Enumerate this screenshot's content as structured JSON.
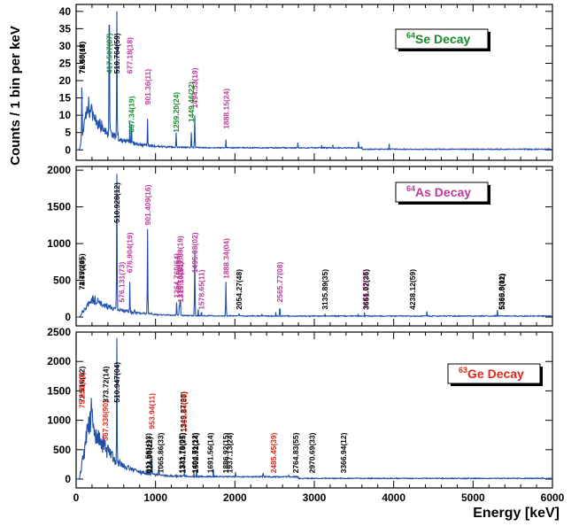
{
  "figure": {
    "ylabel": "Counts / 1 bin per keV",
    "xlabel": "Energy [keV]"
  },
  "chart_data": [
    {
      "type": "line",
      "title_prefix": "64",
      "title_suffix": "Se Decay",
      "title_color": "#1a8a2e",
      "line_color": "#1f4fa8",
      "xlim": [
        0,
        6000
      ],
      "ylim": [
        -3,
        42
      ],
      "yticks": [
        0,
        5,
        10,
        15,
        20,
        25,
        30,
        35,
        40
      ],
      "bg_level": 12,
      "bg_peak_x": 150,
      "bg_decay_keV": 260,
      "bg_floor": 0.6,
      "tail_keV": 3600,
      "peaks": [
        {
          "x": 72.5,
          "y": 18
        },
        {
          "x": 75.5,
          "y": 12
        },
        {
          "x": 417.5,
          "y": 36
        },
        {
          "x": 510.8,
          "y": 40
        },
        {
          "x": 677.2,
          "y": 8
        },
        {
          "x": 697.3,
          "y": 7
        },
        {
          "x": 901.4,
          "y": 9
        },
        {
          "x": 1259.2,
          "y": 5
        },
        {
          "x": 1449.5,
          "y": 5
        },
        {
          "x": 1494.5,
          "y": 10
        },
        {
          "x": 1888.2,
          "y": 3
        }
      ],
      "labels": [
        {
          "x": 72.48,
          "y": 22,
          "text": "72.48(43)",
          "color": "#000000"
        },
        {
          "x": 75.5,
          "y": 22,
          "text": "75.50(18)",
          "color": "#000000"
        },
        {
          "x": 417.51,
          "y": 22,
          "text": "417.507(87)",
          "color": "#1a8a2e"
        },
        {
          "x": 510.76,
          "y": 22,
          "text": "510.764(59)",
          "color": "#000000"
        },
        {
          "x": 677.18,
          "y": 22,
          "text": "677.18(18)",
          "color": "#c0399a"
        },
        {
          "x": 697.34,
          "y": 5,
          "text": "697.34(19)",
          "color": "#1a8a2e"
        },
        {
          "x": 901.36,
          "y": 13,
          "text": "901.36(11)",
          "color": "#c0399a"
        },
        {
          "x": 1259.2,
          "y": 5,
          "text": "1259.20(24)",
          "color": "#1a8a2e"
        },
        {
          "x": 1449.46,
          "y": 8,
          "text": "1449.46(22)",
          "color": "#1a8a2e"
        },
        {
          "x": 1494.53,
          "y": 12,
          "text": "1494.53(19)",
          "color": "#c0399a"
        },
        {
          "x": 1888.15,
          "y": 6,
          "text": "1888.15(24)",
          "color": "#c0399a"
        }
      ]
    },
    {
      "type": "line",
      "title_prefix": "64",
      "title_suffix": "As Decay",
      "title_color": "#c0399a",
      "line_color": "#1f4fa8",
      "xlim": [
        0,
        6000
      ],
      "ylim": [
        -120,
        2050
      ],
      "yticks": [
        0,
        500,
        1000,
        1500,
        2000
      ],
      "bg_level": 240,
      "bg_peak_x": 200,
      "bg_decay_keV": 330,
      "bg_floor": 14,
      "tail_keV": 6000,
      "peaks": [
        {
          "x": 75,
          "y": 80
        },
        {
          "x": 510.9,
          "y": 1950
        },
        {
          "x": 576.1,
          "y": 60
        },
        {
          "x": 676.9,
          "y": 480
        },
        {
          "x": 901.4,
          "y": 1200
        },
        {
          "x": 1264.8,
          "y": 200
        },
        {
          "x": 1300.2,
          "y": 150
        },
        {
          "x": 1311.98,
          "y": 220
        },
        {
          "x": 1315.1,
          "y": 100
        },
        {
          "x": 1495.1,
          "y": 900
        },
        {
          "x": 1578.7,
          "y": 60
        },
        {
          "x": 1888.3,
          "y": 480
        },
        {
          "x": 2054.3,
          "y": 40
        },
        {
          "x": 2565.8,
          "y": 110
        },
        {
          "x": 3135.9,
          "y": 20
        },
        {
          "x": 3646.8,
          "y": 20
        },
        {
          "x": 3651.0,
          "y": 15
        },
        {
          "x": 4238.1,
          "y": 12
        },
        {
          "x": 5360.8,
          "y": 10
        },
        {
          "x": 5365.0,
          "y": 8
        }
      ],
      "labels": [
        {
          "x": 72.47,
          "y": 370,
          "text": "72.47(24)",
          "color": "#000000"
        },
        {
          "x": 74.79,
          "y": 370,
          "text": "74.790(95)",
          "color": "#000000"
        },
        {
          "x": 510.928,
          "y": 1280,
          "text": "510.928(12)",
          "color": "#000000"
        },
        {
          "x": 576.131,
          "y": 200,
          "text": "576.131(73)",
          "color": "#c0399a"
        },
        {
          "x": 676.904,
          "y": 600,
          "text": "676.904(19)",
          "color": "#c0399a"
        },
        {
          "x": 901.409,
          "y": 1250,
          "text": "901.409(16)",
          "color": "#c0399a"
        },
        {
          "x": 1264.76,
          "y": 260,
          "text": "1264.760(64)",
          "color": "#c0399a"
        },
        {
          "x": 1300.15,
          "y": 260,
          "text": "1300.153(06)",
          "color": "#c0399a"
        },
        {
          "x": 1311.98,
          "y": 560,
          "text": "1311.98(19)",
          "color": "#c0399a"
        },
        {
          "x": 1315.1,
          "y": 200,
          "text": "1315.10(14)",
          "color": "#c0399a"
        },
        {
          "x": 1495.08,
          "y": 600,
          "text": "1495.08(02)",
          "color": "#c0399a"
        },
        {
          "x": 1578.65,
          "y": 100,
          "text": "1578.65(11)",
          "color": "#c0399a"
        },
        {
          "x": 1888.34,
          "y": 520,
          "text": "1888.34(04)",
          "color": "#c0399a"
        },
        {
          "x": 2054.27,
          "y": 100,
          "text": "2054.27(48)",
          "color": "#000000"
        },
        {
          "x": 2565.77,
          "y": 200,
          "text": "2565.77(08)",
          "color": "#c0399a"
        },
        {
          "x": 3135.89,
          "y": 100,
          "text": "3135.89(35)",
          "color": "#000000"
        },
        {
          "x": 3646.77,
          "y": 100,
          "text": "3646.77(25)",
          "color": "#c0399a"
        },
        {
          "x": 3651.02,
          "y": 100,
          "text": "3651.02(36)",
          "color": "#000000"
        },
        {
          "x": 4238.12,
          "y": 100,
          "text": "4238.12(59)",
          "color": "#000000"
        },
        {
          "x": 5360.8,
          "y": 100,
          "text": "5360.8(11)",
          "color": "#000000"
        },
        {
          "x": 5365.0,
          "y": 100,
          "text": "5365.0(02)",
          "color": "#000000"
        }
      ]
    },
    {
      "type": "line",
      "title_prefix": "63",
      "title_suffix": "Ge Decay",
      "title_color": "#e0281c",
      "line_color": "#1f4fa8",
      "xlim": [
        0,
        6000
      ],
      "ylim": [
        -150,
        2500
      ],
      "yticks": [
        0,
        500,
        1000,
        1500,
        2000,
        2500
      ],
      "bg_level": 1050,
      "bg_peak_x": 180,
      "bg_decay_keV": 240,
      "bg_floor": 40,
      "tail_keV": 2800,
      "peaks": [
        {
          "x": 72.5,
          "y": 300
        },
        {
          "x": 75.1,
          "y": 250
        },
        {
          "x": 367.3,
          "y": 120
        },
        {
          "x": 373.7,
          "y": 100
        },
        {
          "x": 510.9,
          "y": 2400
        },
        {
          "x": 911.6,
          "y": 60
        },
        {
          "x": 953.9,
          "y": 400
        },
        {
          "x": 1065.9,
          "y": 50
        },
        {
          "x": 1331.8,
          "y": 40
        },
        {
          "x": 1343.2,
          "y": 40
        },
        {
          "x": 1349.9,
          "y": 60
        },
        {
          "x": 1363.3,
          "y": 130
        },
        {
          "x": 1494.7,
          "y": 40
        },
        {
          "x": 1502.9,
          "y": 30
        },
        {
          "x": 2485.5,
          "y": 30
        }
      ],
      "labels": [
        {
          "x": 72.516,
          "y": 1300,
          "text": "72.516(62)",
          "color": "#000000"
        },
        {
          "x": 75.059,
          "y": 1200,
          "text": "75.059(23)",
          "color": "#e0281c"
        },
        {
          "x": 367.336,
          "y": 650,
          "text": "367.336(90)",
          "color": "#e0281c"
        },
        {
          "x": 373.72,
          "y": 1300,
          "text": "373.72(14)",
          "color": "#000000"
        },
        {
          "x": 510.947,
          "y": 1300,
          "text": "510.947(04)",
          "color": "#000000"
        },
        {
          "x": 911.591,
          "y": 100,
          "text": "911.591(13)",
          "color": "#000000"
        },
        {
          "x": 924.9,
          "y": 100,
          "text": "924.90(22)",
          "color": "#000000"
        },
        {
          "x": 953.94,
          "y": 850,
          "text": "953.94(11)",
          "color": "#e0281c"
        },
        {
          "x": 1065.86,
          "y": 100,
          "text": "1065.86(33)",
          "color": "#000000"
        },
        {
          "x": 1331.79,
          "y": 100,
          "text": "1331.79(07)",
          "color": "#000000"
        },
        {
          "x": 1343.16,
          "y": 100,
          "text": "1343.16(25)",
          "color": "#000000"
        },
        {
          "x": 1349.87,
          "y": 800,
          "text": "1349.87(28)",
          "color": "#000000"
        },
        {
          "x": 1363.34,
          "y": 800,
          "text": "1363.34(09)",
          "color": "#e0281c"
        },
        {
          "x": 1494.71,
          "y": 100,
          "text": "1494.71(12)",
          "color": "#000000"
        },
        {
          "x": 1502.92,
          "y": 100,
          "text": "1502.92(24)",
          "color": "#000000"
        },
        {
          "x": 1691.56,
          "y": 100,
          "text": "1691.56(14)",
          "color": "#000000"
        },
        {
          "x": 1886.92,
          "y": 100,
          "text": "1886.92(15)",
          "color": "#000000"
        },
        {
          "x": 1937.13,
          "y": 100,
          "text": "1937.13(24)",
          "color": "#000000"
        },
        {
          "x": 2485.45,
          "y": 100,
          "text": "2485.45(39)",
          "color": "#e0281c"
        },
        {
          "x": 2764.83,
          "y": 100,
          "text": "2764.83(55)",
          "color": "#000000"
        },
        {
          "x": 2970.69,
          "y": 100,
          "text": "2970.69(33)",
          "color": "#000000"
        },
        {
          "x": 3366.94,
          "y": 100,
          "text": "3366.94(12)",
          "color": "#000000"
        }
      ]
    }
  ],
  "xaxis": {
    "ticks": [
      0,
      1000,
      2000,
      3000,
      4000,
      5000,
      6000
    ],
    "tick_labels": [
      "0",
      "1000",
      "2000",
      "3000",
      "4000",
      "5000",
      "6000"
    ]
  }
}
